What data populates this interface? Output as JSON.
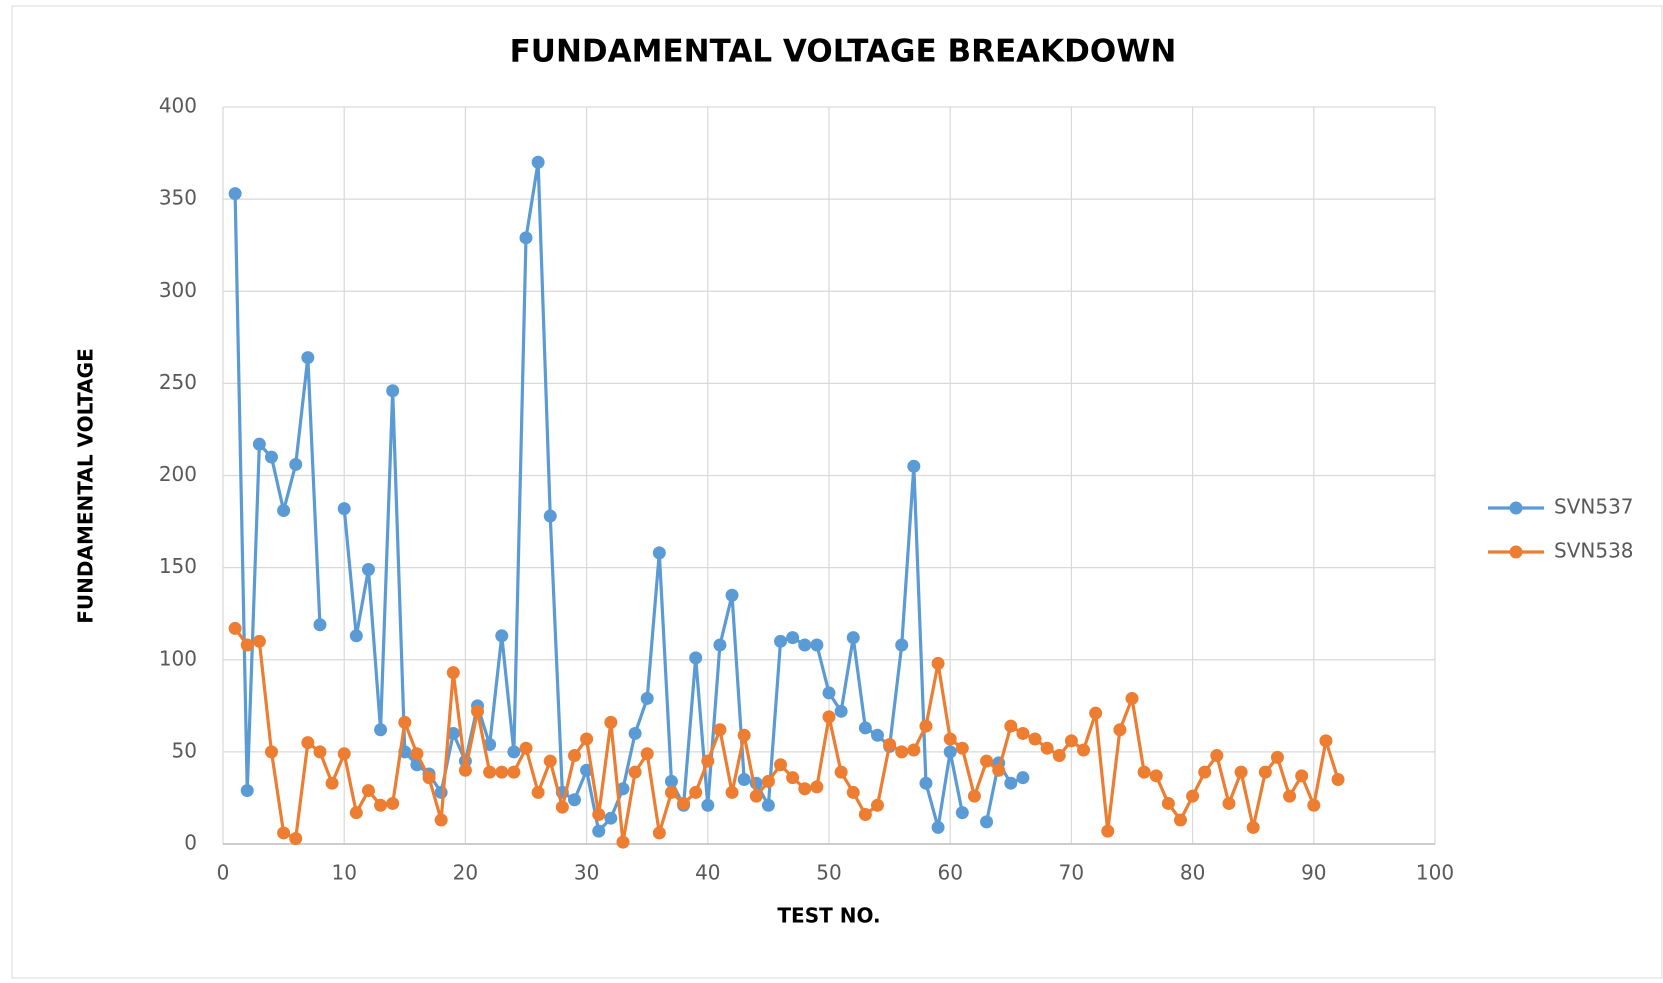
{
  "chart_data": {
    "type": "line",
    "title": "FUNDAMENTAL VOLTAGE BREAKDOWN",
    "x_label": "TEST NO.",
    "y_label": "FUNDAMENTAL VOLTAGE",
    "x": [
      1,
      2,
      3,
      4,
      5,
      6,
      7,
      8,
      9,
      10,
      11,
      12,
      13,
      14,
      15,
      16,
      17,
      18,
      19,
      20,
      21,
      22,
      23,
      24,
      25,
      26,
      27,
      28,
      29,
      30,
      31,
      32,
      33,
      34,
      35,
      36,
      37,
      38,
      39,
      40,
      41,
      42,
      43,
      44,
      45,
      46,
      47,
      48,
      49,
      50,
      51,
      52,
      53,
      54,
      55,
      56,
      57,
      58,
      59,
      60,
      61,
      62,
      63,
      64,
      65,
      66,
      67,
      68,
      69,
      70,
      71,
      72,
      73,
      74,
      75,
      76,
      77,
      78,
      79,
      80,
      81,
      82,
      83,
      84,
      85,
      86,
      87,
      88,
      89,
      90,
      91,
      92
    ],
    "series": [
      {
        "name": "SVN537",
        "color": "#5b9bd5",
        "values": [
          353,
          29,
          217,
          210,
          181,
          206,
          264,
          119,
          null,
          182,
          113,
          149,
          62,
          246,
          50,
          43,
          38,
          28,
          60,
          45,
          75,
          54,
          113,
          50,
          329,
          370,
          178,
          28,
          24,
          40,
          7,
          14,
          30,
          60,
          79,
          158,
          34,
          21,
          101,
          21,
          108,
          135,
          35,
          33,
          21,
          110,
          112,
          108,
          108,
          82,
          72,
          112,
          63,
          59,
          53,
          108,
          205,
          33,
          9,
          50,
          17,
          null,
          12,
          44,
          33,
          36,
          null,
          null,
          null,
          null,
          null,
          null,
          null,
          null,
          null,
          null,
          null,
          null,
          null,
          null,
          null,
          null,
          null,
          null,
          null,
          null,
          null,
          null,
          null,
          null,
          null,
          null
        ]
      },
      {
        "name": "SVN538",
        "color": "#ed7d31",
        "values": [
          117,
          108,
          110,
          50,
          6,
          3,
          55,
          50,
          33,
          49,
          17,
          29,
          21,
          22,
          66,
          49,
          36,
          13,
          93,
          40,
          72,
          39,
          39,
          39,
          52,
          28,
          45,
          20,
          48,
          57,
          16,
          66,
          1,
          39,
          49,
          6,
          28,
          22,
          28,
          45,
          62,
          28,
          59,
          26,
          34,
          43,
          36,
          30,
          31,
          69,
          39,
          28,
          16,
          21,
          54,
          50,
          51,
          64,
          98,
          57,
          52,
          26,
          45,
          40,
          64,
          60,
          57,
          52,
          48,
          56,
          51,
          71,
          7,
          62,
          79,
          39,
          37,
          22,
          13,
          26,
          39,
          48,
          22,
          39,
          9,
          39,
          47,
          26,
          37,
          21,
          56,
          35
        ]
      }
    ],
    "xlim": [
      0,
      100
    ],
    "xticks": [
      0,
      10,
      20,
      30,
      40,
      50,
      60,
      70,
      80,
      90,
      100
    ],
    "ylim": [
      0,
      400
    ],
    "yticks": [
      0,
      50,
      100,
      150,
      200,
      250,
      300,
      350,
      400
    ],
    "grid": true,
    "legend": "right"
  }
}
